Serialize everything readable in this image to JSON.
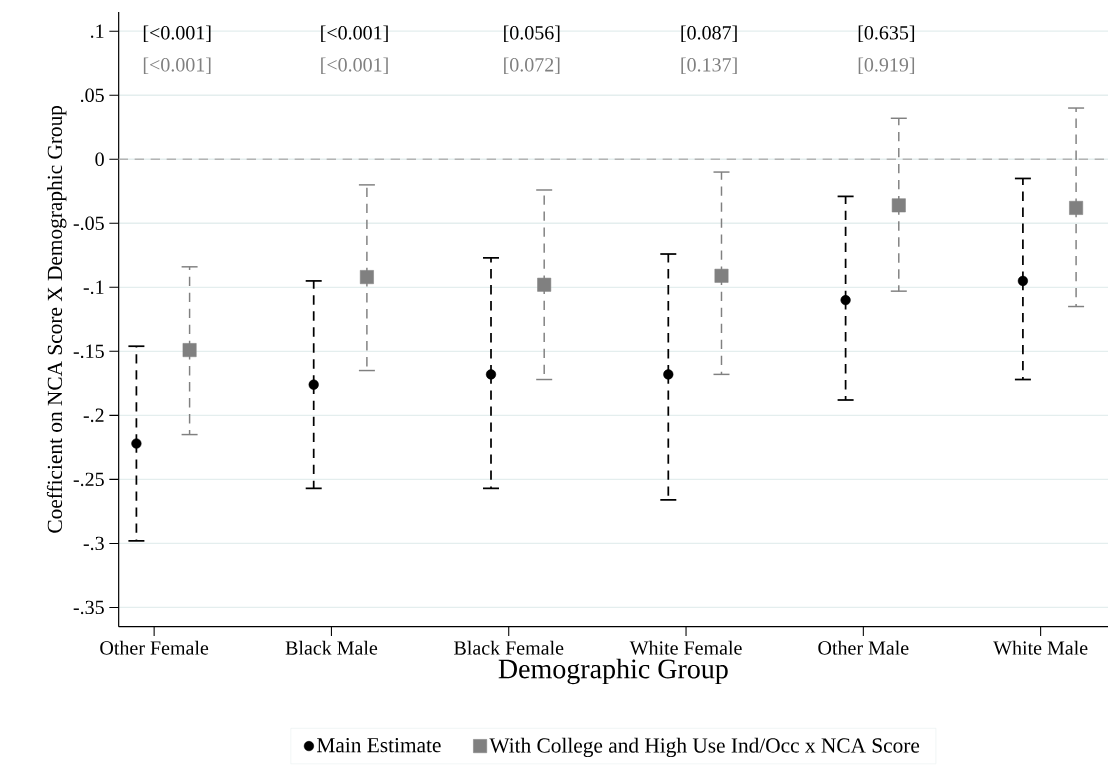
{
  "chart_data": {
    "type": "scatter",
    "xlabel": "Demographic Group",
    "ylabel": "Coefficient on NCA Score X Demographic Group",
    "categories": [
      "Other Female",
      "Black Male",
      "Black Female",
      "White Female",
      "Other Male",
      "White Male"
    ],
    "series": [
      {
        "name": "Main Estimate",
        "color": "#000000",
        "marker": "circle",
        "values": [
          -0.222,
          -0.176,
          -0.168,
          -0.168,
          -0.11,
          -0.095
        ],
        "errors": [
          [
            -0.298,
            -0.146
          ],
          [
            -0.257,
            -0.095
          ],
          [
            -0.257,
            -0.077
          ],
          [
            -0.266,
            -0.074
          ],
          [
            -0.188,
            -0.029
          ],
          [
            -0.172,
            -0.015
          ]
        ]
      },
      {
        "name": "With College and High Use Ind/Occ x NCA Score",
        "color": "#808080",
        "marker": "square",
        "values": [
          -0.149,
          -0.092,
          -0.098,
          -0.091,
          -0.036,
          -0.038
        ],
        "errors": [
          [
            -0.215,
            -0.084
          ],
          [
            -0.165,
            -0.02
          ],
          [
            -0.172,
            -0.024
          ],
          [
            -0.168,
            -0.01
          ],
          [
            -0.103,
            0.032
          ],
          [
            -0.115,
            0.04
          ]
        ]
      }
    ],
    "ylim": [
      -0.365,
      0.115
    ],
    "yticks": [
      {
        "value": 0.1,
        "label": ".1"
      },
      {
        "value": 0.05,
        "label": ".05"
      },
      0,
      {
        "value": -0.05,
        "label": "-.05"
      },
      {
        "value": -0.1,
        "label": "-.1"
      },
      {
        "value": -0.15,
        "label": "-.15"
      },
      {
        "value": -0.2,
        "label": "-.2"
      },
      {
        "value": -0.25,
        "label": "-.25"
      },
      {
        "value": -0.3,
        "label": "-.3"
      },
      {
        "value": -0.35,
        "label": "-.35"
      }
    ],
    "ref_lines": [
      {
        "axis": "y",
        "value": 0,
        "color": "#b4b4b4",
        "line_style": "dashed"
      }
    ],
    "annotations": [
      "[<0.001]",
      "[<0.001]",
      "[<0.001]",
      "[<0.001]",
      "[0.056]",
      "[0.072]",
      "[0.087]",
      "[0.137]",
      "[0.635]",
      "[0.919]"
    ],
    "grid": "y",
    "legend": "bottom"
  }
}
